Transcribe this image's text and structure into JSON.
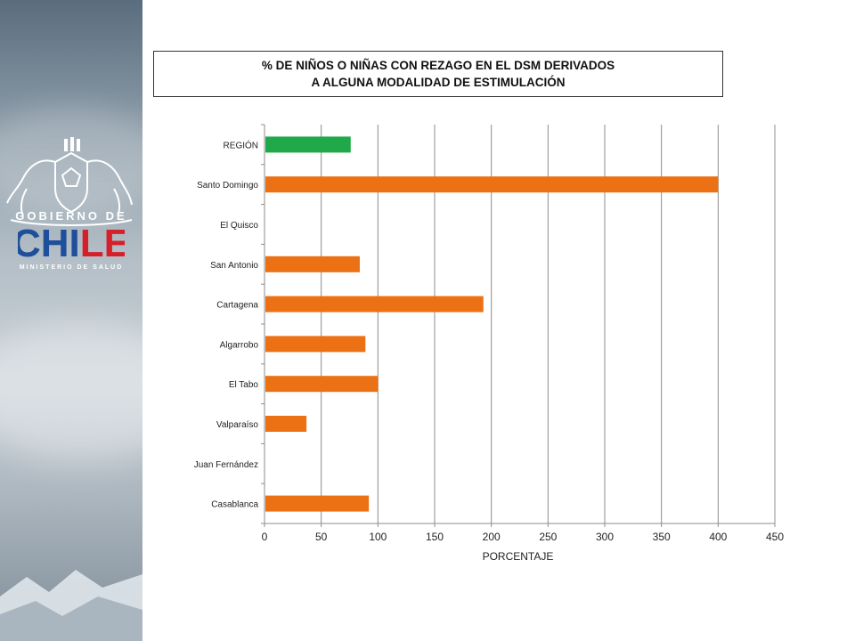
{
  "slide": {
    "title_line1": "% DE NIÑOS O NIÑAS CON REZAGO EN EL DSM DERIVADOS",
    "title_line2": "A ALGUNA MODALIDAD DE ESTIMULACIÓN"
  },
  "logo": {
    "line1": "GOBIERNO DE",
    "line2": "CHILE",
    "line3": "MINISTERIO DE SALUD",
    "colors": {
      "blue": "#1f4e9b",
      "red": "#d5202a"
    }
  },
  "chart_data": {
    "type": "bar",
    "orientation": "horizontal",
    "categories": [
      "REGIÓN",
      "Santo Domingo",
      "El Quisco",
      "San Antonio",
      "Cartagena",
      "Algarrobo",
      "El Tabo",
      "Valparaíso",
      "Juan Fernández",
      "Casablanca"
    ],
    "values": [
      76,
      400,
      0,
      84,
      193,
      89,
      100,
      37,
      0,
      92
    ],
    "colors": [
      "#1fa94a",
      "#ec7014",
      "#ec7014",
      "#ec7014",
      "#ec7014",
      "#ec7014",
      "#ec7014",
      "#ec7014",
      "#ec7014",
      "#ec7014"
    ],
    "xlabel": "PORCENTAJE",
    "xlim": [
      0,
      450
    ],
    "xticks": [
      0,
      50,
      100,
      150,
      200,
      250,
      300,
      350,
      400,
      450
    ],
    "grid": "vertical"
  }
}
